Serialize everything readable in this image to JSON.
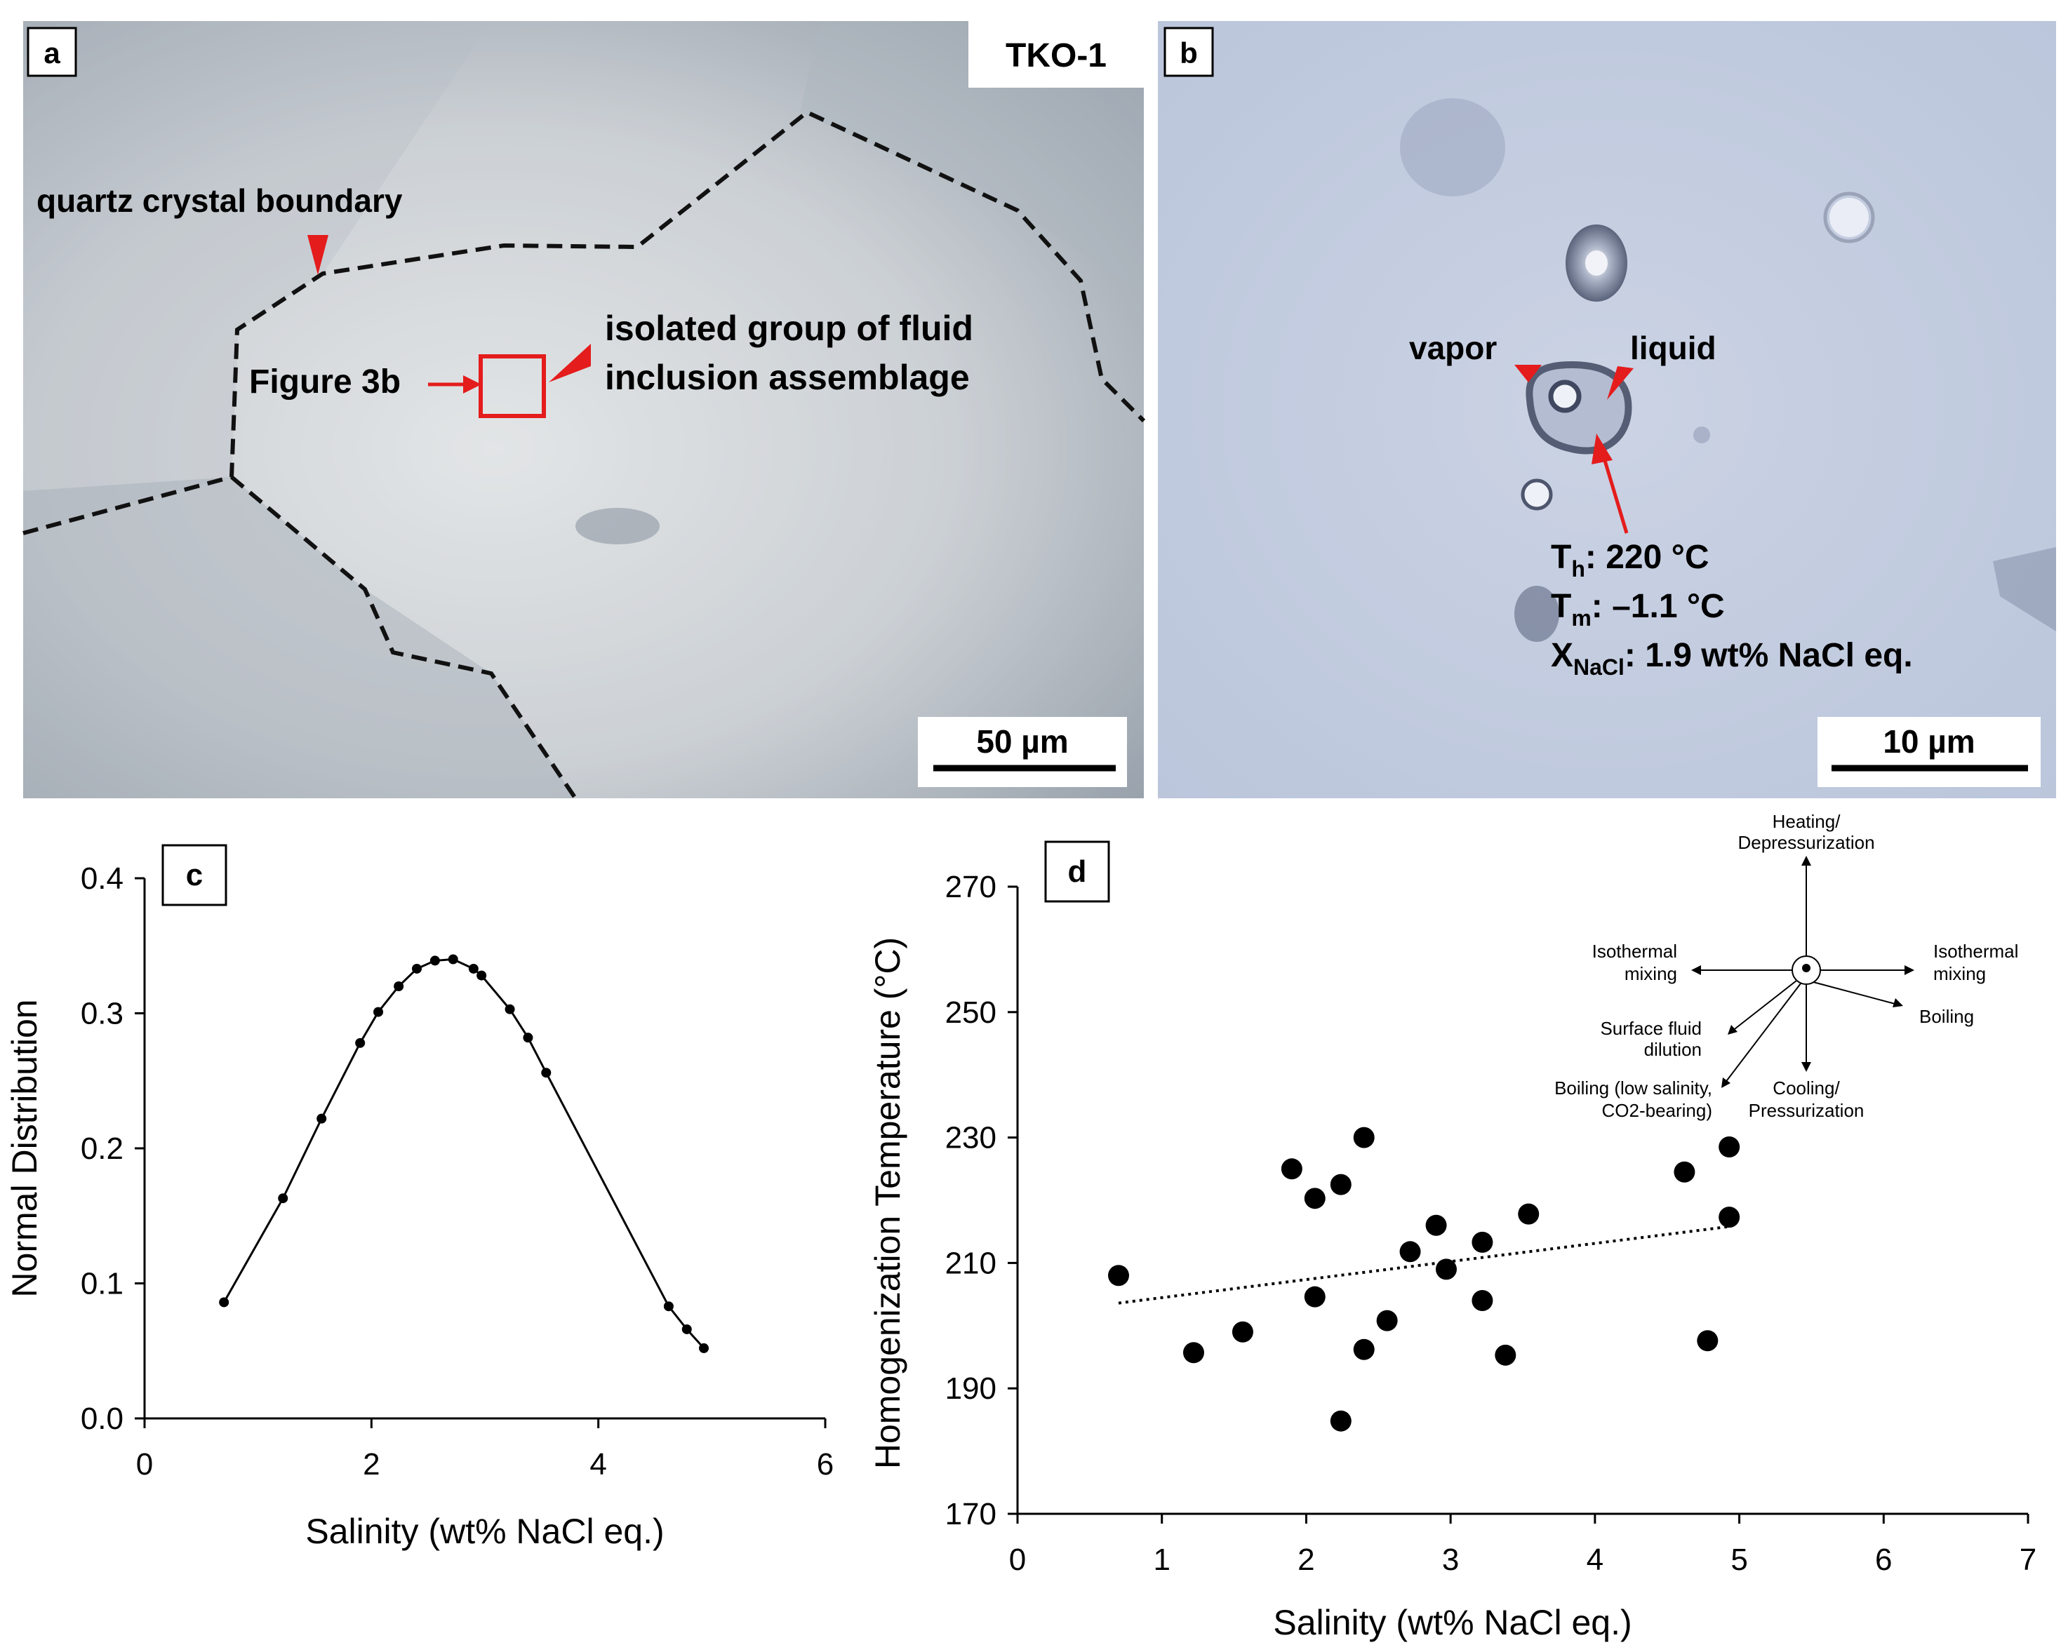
{
  "panel_a": {
    "label": "a",
    "sample": "TKO-1",
    "boundary_label": "quartz crystal boundary",
    "fia_label_line1": "isolated group of fluid",
    "fia_label_line2": "inclusion assemblage",
    "figure_ref": "Figure 3b",
    "scale": "50 µm"
  },
  "panel_b": {
    "label": "b",
    "vapor": "vapor",
    "liquid": "liquid",
    "th_sym": "T",
    "th_sub": "h",
    "th_val": ": 220 °C",
    "tm_sym": "T",
    "tm_sub": "m",
    "tm_val": ": –1.1 °C",
    "x_sym": "X",
    "x_sub": "NaCl",
    "x_val": ": 1.9 wt% NaCl eq.",
    "scale": "10 µm"
  },
  "panel_c": {
    "label": "c"
  },
  "panel_d": {
    "label": "d",
    "diagram": {
      "up": [
        "Heating/",
        "Depressurization"
      ],
      "left": [
        "Isothermal",
        "mixing"
      ],
      "right": [
        "Isothermal",
        "mixing"
      ],
      "boiling": "Boiling",
      "dilution": [
        "Surface fluid",
        "dilution"
      ],
      "boiling_low": [
        "Boiling (low salinity,",
        "CO2-bearing)"
      ],
      "down": [
        "Cooling/",
        "Pressurization"
      ]
    }
  },
  "colors": {
    "annotation_red": "#e41c1c",
    "microscope_a": "#c9ccd1",
    "microscope_b": "#c3cde0"
  },
  "chart_data": [
    {
      "type": "line",
      "xlabel": "Salinity (wt% NaCl eq.)",
      "ylabel": "Normal Distribution",
      "xlim": [
        0,
        6
      ],
      "ylim": [
        0,
        0.4
      ],
      "xticks": [
        "0",
        "2",
        "4",
        "6"
      ],
      "yticks": [
        "0.0",
        "0.1",
        "0.2",
        "0.3",
        "0.4"
      ],
      "x": [
        0.7,
        1.22,
        1.56,
        1.9,
        2.06,
        2.24,
        2.4,
        2.56,
        2.72,
        2.9,
        2.97,
        3.22,
        3.38,
        3.54,
        4.62,
        4.78,
        4.93
      ],
      "y": [
        0.086,
        0.163,
        0.222,
        0.278,
        0.301,
        0.32,
        0.333,
        0.339,
        0.34,
        0.333,
        0.328,
        0.303,
        0.282,
        0.256,
        0.083,
        0.066,
        0.052
      ]
    },
    {
      "type": "scatter",
      "xlabel": "Salinity (wt% NaCl eq.)",
      "ylabel": "Homogenization Temperature (°C)",
      "xlim": [
        0,
        7
      ],
      "ylim": [
        170,
        270
      ],
      "xticks": [
        "0",
        "1",
        "2",
        "3",
        "4",
        "5",
        "6",
        "7"
      ],
      "yticks": [
        "170",
        "190",
        "210",
        "230",
        "250",
        "270"
      ],
      "x": [
        0.7,
        1.22,
        1.56,
        1.9,
        2.06,
        2.06,
        2.24,
        2.24,
        2.4,
        2.4,
        2.56,
        2.72,
        2.9,
        2.97,
        3.22,
        3.22,
        3.38,
        3.54,
        4.62,
        4.78,
        4.93,
        4.93
      ],
      "y": [
        208,
        195.7,
        199,
        225,
        220.3,
        204.6,
        222.5,
        184.8,
        230,
        196.2,
        200.8,
        211.8,
        216,
        209,
        213.3,
        204,
        195.3,
        217.8,
        224.5,
        197.6,
        228.5,
        217.3
      ],
      "trendline": {
        "style": "dotted",
        "x": [
          0.7,
          4.93
        ],
        "y": [
          203.6,
          215.8
        ]
      }
    }
  ]
}
